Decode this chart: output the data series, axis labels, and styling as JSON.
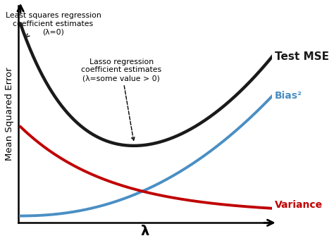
{
  "xlabel": "λ",
  "ylabel": "Mean Squared Error",
  "background_color": "#ffffff",
  "line_colors": {
    "test_mse": "#1a1a1a",
    "bias2": "#4a8fc4",
    "variance": "#c00000"
  },
  "line_widths": {
    "test_mse": 3.2,
    "bias2": 2.8,
    "variance": 2.8
  },
  "labels": {
    "test_mse": "Test MSE",
    "bias2": "Bias²",
    "variance": "Variance"
  },
  "annot_ls_text": "Least squares regression\ncoefficient estimates\n(λ=0)",
  "annot_lasso_text": "Lasso regression\ncoefficient estimates\n(λ=some value > 0)"
}
